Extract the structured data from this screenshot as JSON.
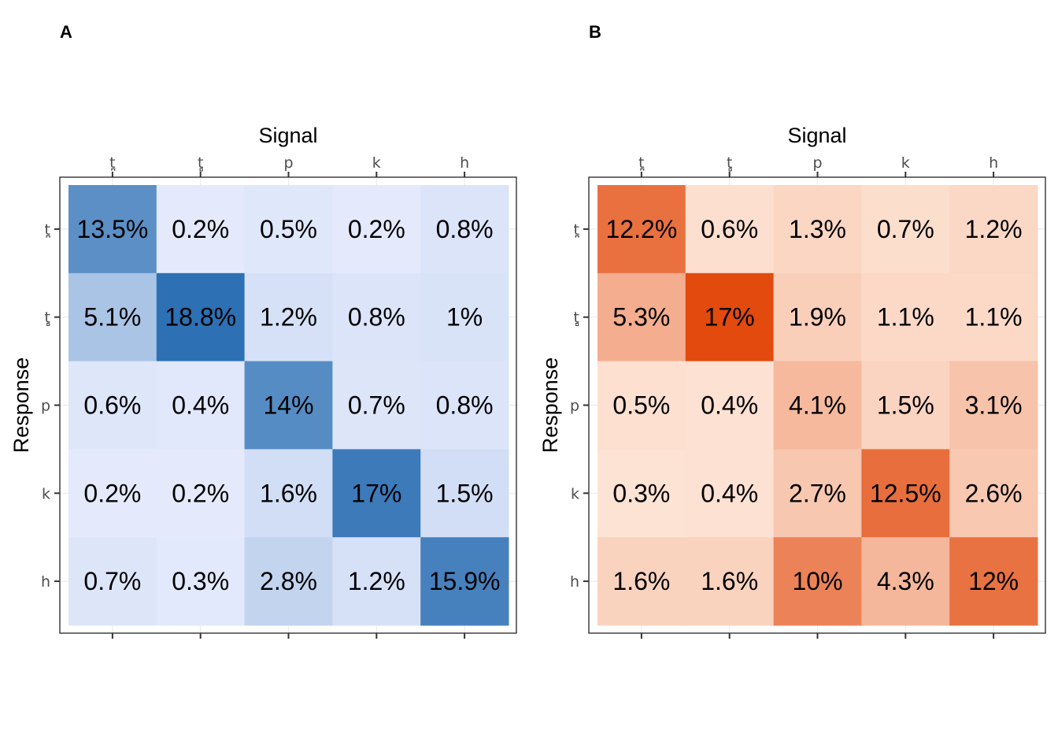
{
  "chart_data": [
    {
      "type": "heatmap",
      "panel_label": "A",
      "xlabel": "Signal",
      "ylabel": "Response",
      "x_categories": [
        "t̪",
        "t̻",
        "p",
        "k",
        "h"
      ],
      "y_categories": [
        "t̪",
        "t̻",
        "p",
        "k",
        "h"
      ],
      "values": [
        [
          13.5,
          0.2,
          0.5,
          0.2,
          0.8
        ],
        [
          5.1,
          18.8,
          1.2,
          0.8,
          1.0
        ],
        [
          0.6,
          0.4,
          14.0,
          0.7,
          0.8
        ],
        [
          0.2,
          0.2,
          1.6,
          17.0,
          1.5
        ],
        [
          0.7,
          0.3,
          2.8,
          1.2,
          15.9
        ]
      ],
      "labels": [
        [
          "13.5%",
          "0.2%",
          "0.5%",
          "0.2%",
          "0.8%"
        ],
        [
          "5.1%",
          "18.8%",
          "1.2%",
          "0.8%",
          "1%"
        ],
        [
          "0.6%",
          "0.4%",
          "14%",
          "0.7%",
          "0.8%"
        ],
        [
          "0.2%",
          "0.2%",
          "1.6%",
          "17%",
          "1.5%"
        ],
        [
          "0.7%",
          "0.3%",
          "2.8%",
          "1.2%",
          "15.9%"
        ]
      ],
      "color_low": "#e8edfe",
      "color_high": "#2b6fb3",
      "value_range": [
        0,
        19
      ],
      "grid": true,
      "legend": "none"
    },
    {
      "type": "heatmap",
      "panel_label": "B",
      "xlabel": "Signal",
      "ylabel": "Response",
      "x_categories": [
        "t̪",
        "t̻",
        "p",
        "k",
        "h"
      ],
      "y_categories": [
        "t̪",
        "t̻",
        "p",
        "k",
        "h"
      ],
      "values": [
        [
          12.2,
          0.6,
          1.3,
          0.7,
          1.2
        ],
        [
          5.3,
          17.0,
          1.9,
          1.1,
          1.1
        ],
        [
          0.5,
          0.4,
          4.1,
          1.5,
          3.1
        ],
        [
          0.3,
          0.4,
          2.7,
          12.5,
          2.6
        ],
        [
          1.6,
          1.6,
          10.0,
          4.3,
          12.0
        ]
      ],
      "labels": [
        [
          "12.2%",
          "0.6%",
          "1.3%",
          "0.7%",
          "1.2%"
        ],
        [
          "5.3%",
          "17%",
          "1.9%",
          "1.1%",
          "1.1%"
        ],
        [
          "0.5%",
          "0.4%",
          "4.1%",
          "1.5%",
          "3.1%"
        ],
        [
          "0.3%",
          "0.4%",
          "2.7%",
          "12.5%",
          "2.6%"
        ],
        [
          "1.6%",
          "1.6%",
          "10%",
          "4.3%",
          "12%"
        ]
      ],
      "color_low": "#fee8da",
      "color_high": "#e24a0e",
      "value_range": [
        0,
        17
      ],
      "grid": true,
      "legend": "none"
    }
  ]
}
